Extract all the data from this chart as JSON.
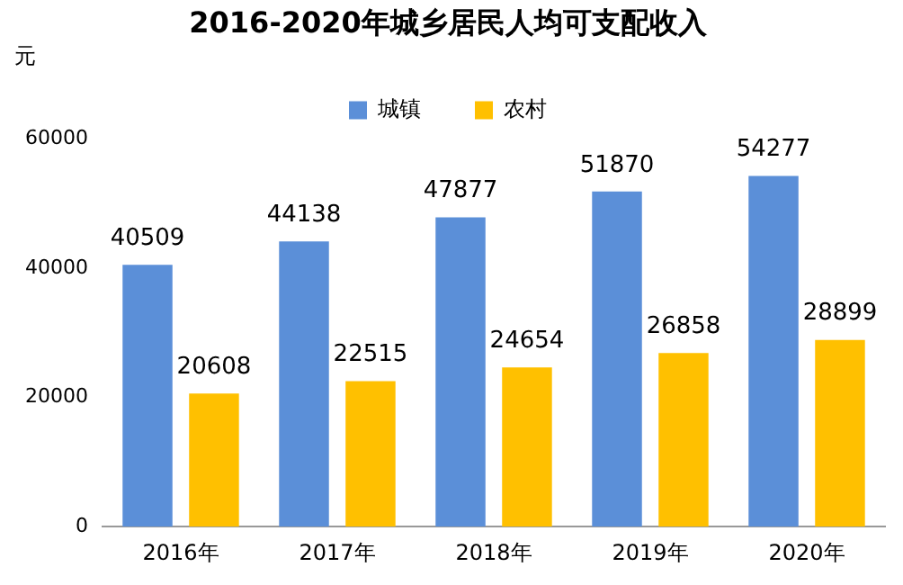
{
  "chart_data": {
    "type": "bar",
    "title": "2016-2020年城乡居民人均可支配收入",
    "ylabel": "元",
    "categories": [
      "2016年",
      "2017年",
      "2018年",
      "2019年",
      "2020年"
    ],
    "series": [
      {
        "name": "城镇",
        "color": "#5b8fd8",
        "values": [
          40509,
          44138,
          47877,
          51870,
          54277
        ]
      },
      {
        "name": "农村",
        "color": "#ffc000",
        "values": [
          20608,
          22515,
          24654,
          26858,
          28899
        ]
      }
    ],
    "ylim": [
      0,
      60000
    ],
    "yticks": [
      0,
      20000,
      40000,
      60000
    ],
    "grid": false,
    "legend": "top",
    "data_labels": true
  }
}
